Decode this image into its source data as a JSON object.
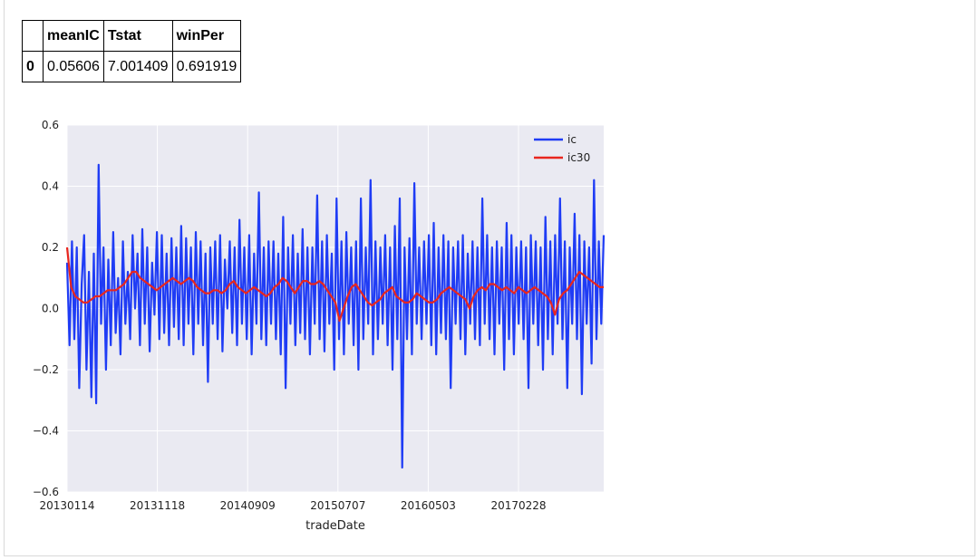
{
  "table": {
    "columns": [
      "",
      "meanIC",
      "Tstat",
      "winPer"
    ],
    "rows": [
      {
        "index": "0",
        "meanIC": "0.05606",
        "Tstat": "7.001409",
        "winPer": "0.691919"
      }
    ]
  },
  "chart_data": {
    "type": "line",
    "title": "",
    "xlabel": "tradeDate",
    "ylabel": "",
    "ylim": [
      -0.6,
      0.6
    ],
    "yticks": [
      "0.6",
      "0.4",
      "0.2",
      "0.0",
      "−0.2",
      "−0.4",
      "−0.6"
    ],
    "ytick_values": [
      0.6,
      0.4,
      0.2,
      0.0,
      -0.2,
      -0.4,
      -0.6
    ],
    "xticks": [
      "20130114",
      "20131118",
      "20140909",
      "20150707",
      "20160503",
      "20170228"
    ],
    "grid": true,
    "legend": "top-right",
    "series": [
      {
        "name": "ic",
        "color": "#1f3cf5",
        "values": [
          0.15,
          -0.12,
          0.22,
          -0.1,
          0.2,
          -0.26,
          0.08,
          0.24,
          -0.2,
          0.12,
          -0.29,
          0.18,
          -0.31,
          0.47,
          -0.05,
          0.2,
          -0.2,
          0.16,
          -0.12,
          0.25,
          -0.08,
          0.1,
          -0.15,
          0.22,
          -0.05,
          0.12,
          -0.1,
          0.24,
          0.0,
          0.18,
          -0.12,
          0.26,
          -0.05,
          0.2,
          -0.14,
          0.15,
          -0.02,
          0.25,
          -0.1,
          0.24,
          -0.08,
          0.18,
          -0.12,
          0.23,
          -0.06,
          0.2,
          -0.1,
          0.27,
          -0.12,
          0.23,
          -0.05,
          0.2,
          -0.15,
          0.25,
          -0.05,
          0.22,
          -0.12,
          0.18,
          -0.24,
          0.2,
          -0.05,
          0.22,
          -0.1,
          0.24,
          -0.14,
          0.16,
          0.0,
          0.22,
          -0.08,
          0.2,
          -0.12,
          0.29,
          -0.05,
          0.2,
          -0.1,
          0.24,
          -0.15,
          0.18,
          -0.05,
          0.38,
          -0.1,
          0.2,
          -0.12,
          0.22,
          -0.05,
          0.22,
          -0.1,
          0.18,
          -0.15,
          0.3,
          -0.26,
          0.2,
          -0.05,
          0.24,
          -0.12,
          0.18,
          -0.08,
          0.26,
          -0.1,
          0.2,
          -0.15,
          0.2,
          -0.05,
          0.37,
          -0.1,
          0.22,
          -0.14,
          0.24,
          -0.05,
          0.18,
          -0.2,
          0.36,
          -0.1,
          0.22,
          -0.15,
          0.25,
          -0.05,
          0.2,
          -0.12,
          0.22,
          -0.2,
          0.36,
          -0.1,
          0.2,
          -0.05,
          0.42,
          -0.15,
          0.22,
          -0.1,
          0.2,
          -0.05,
          0.24,
          -0.12,
          0.2,
          -0.2,
          0.27,
          -0.1,
          0.36,
          -0.52,
          0.2,
          -0.1,
          0.23,
          -0.15,
          0.41,
          -0.05,
          0.2,
          -0.1,
          0.22,
          -0.05,
          0.24,
          -0.12,
          0.28,
          -0.15,
          0.2,
          -0.08,
          0.24,
          -0.1,
          0.22,
          -0.26,
          0.2,
          -0.05,
          0.22,
          -0.1,
          0.24,
          -0.15,
          0.18,
          -0.05,
          0.22,
          -0.1,
          0.2,
          -0.12,
          0.36,
          -0.05,
          0.24,
          -0.1,
          0.2,
          -0.15,
          0.22,
          -0.05,
          0.2,
          -0.2,
          0.28,
          -0.1,
          0.24,
          -0.15,
          0.2,
          -0.05,
          0.22,
          -0.1,
          0.2,
          -0.26,
          0.24,
          -0.05,
          0.22,
          -0.12,
          0.2,
          -0.2,
          0.3,
          -0.1,
          0.22,
          -0.15,
          0.24,
          -0.05,
          0.36,
          -0.1,
          0.22,
          -0.26,
          0.2,
          -0.05,
          0.31,
          -0.1,
          0.24,
          -0.28,
          0.22,
          -0.05,
          0.2,
          -0.18,
          0.42,
          -0.1,
          0.22,
          -0.05,
          0.24
        ],
        "ic30": [
          0.2,
          0.07,
          0.04,
          0.03,
          0.02,
          0.02,
          0.03,
          0.04,
          0.04,
          0.05,
          0.06,
          0.06,
          0.06,
          0.07,
          0.08,
          0.1,
          0.12,
          0.12,
          0.1,
          0.09,
          0.08,
          0.07,
          0.06,
          0.07,
          0.08,
          0.09,
          0.1,
          0.09,
          0.08,
          0.09,
          0.1,
          0.09,
          0.07,
          0.06,
          0.05,
          0.05,
          0.06,
          0.06,
          0.05,
          0.06,
          0.08,
          0.09,
          0.07,
          0.06,
          0.05,
          0.06,
          0.07,
          0.06,
          0.05,
          0.04,
          0.05,
          0.07,
          0.08,
          0.1,
          0.09,
          0.07,
          0.05,
          0.07,
          0.09,
          0.09,
          0.08,
          0.08,
          0.09,
          0.08,
          0.06,
          0.04,
          0.02,
          -0.04,
          0.0,
          0.04,
          0.07,
          0.08,
          0.06,
          0.04,
          0.02,
          0.01,
          0.02,
          0.03,
          0.05,
          0.06,
          0.07,
          0.04,
          0.03,
          0.02,
          0.02,
          0.03,
          0.05,
          0.04,
          0.03,
          0.02,
          0.02,
          0.03,
          0.05,
          0.06,
          0.07,
          0.06,
          0.05,
          0.04,
          0.03,
          0.0,
          0.04,
          0.06,
          0.07,
          0.06,
          0.08,
          0.08,
          0.07,
          0.06,
          0.07,
          0.06,
          0.05,
          0.07,
          0.06,
          0.05,
          0.06,
          0.07,
          0.06,
          0.05,
          0.04,
          0.02,
          -0.02,
          0.03,
          0.05,
          0.06,
          0.08,
          0.1,
          0.12,
          0.11,
          0.1,
          0.09,
          0.08,
          0.07,
          0.07
        ]
      },
      {
        "name": "ic30",
        "color": "#e8261e"
      }
    ]
  }
}
